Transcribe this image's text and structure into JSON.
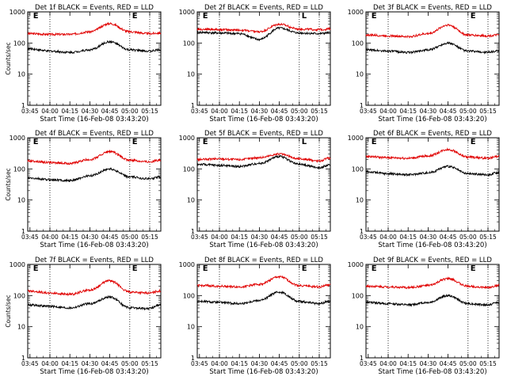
{
  "chart_data": [
    {
      "type": "line",
      "title": "Det 1f BLACK = Events, RED = LLD",
      "xlabel": "Start Time (16-Feb-08 03:43:20)",
      "ylabel": "Counts/sec",
      "yscale": "log",
      "ylim": [
        1,
        1000
      ],
      "yticks": [
        1,
        10,
        100,
        1000
      ],
      "xticks": [
        "03:45",
        "04:00",
        "04:15",
        "04:30",
        "04:45",
        "05:00",
        "05:15"
      ],
      "markers": [
        "E",
        "E"
      ],
      "series": [
        {
          "color": "#e00000",
          "points": [
            [
              "03:45",
              200
            ],
            [
              "04:00",
              190
            ],
            [
              "04:15",
              190
            ],
            [
              "04:30",
              230
            ],
            [
              "04:45",
              420
            ],
            [
              "05:00",
              230
            ],
            [
              "05:15",
              200
            ],
            [
              "05:22",
              210
            ]
          ]
        },
        {
          "color": "#000000",
          "points": [
            [
              "03:45",
              65
            ],
            [
              "04:00",
              55
            ],
            [
              "04:15",
              50
            ],
            [
              "04:30",
              60
            ],
            [
              "04:45",
              110
            ],
            [
              "05:00",
              60
            ],
            [
              "05:15",
              55
            ],
            [
              "05:22",
              60
            ]
          ]
        }
      ]
    },
    {
      "type": "line",
      "title": "Det 2f BLACK = Events, RED = LLD",
      "xlabel": "Start Time (16-Feb-08 03:43:20)",
      "ylabel": "",
      "yscale": "log",
      "ylim": [
        1,
        1000
      ],
      "yticks": [
        1,
        10,
        100,
        1000
      ],
      "xticks": [
        "03:45",
        "04:00",
        "04:15",
        "04:30",
        "04:45",
        "05:00",
        "05:15"
      ],
      "markers": [
        "E",
        "L"
      ],
      "series": [
        {
          "color": "#e00000",
          "points": [
            [
              "03:45",
              280
            ],
            [
              "04:00",
              270
            ],
            [
              "04:15",
              260
            ],
            [
              "04:30",
              230
            ],
            [
              "04:45",
              400
            ],
            [
              "05:00",
              280
            ],
            [
              "05:15",
              270
            ],
            [
              "05:22",
              280
            ]
          ]
        },
        {
          "color": "#000000",
          "points": [
            [
              "03:45",
              220
            ],
            [
              "04:00",
              210
            ],
            [
              "04:15",
              200
            ],
            [
              "04:30",
              130
            ],
            [
              "04:45",
              300
            ],
            [
              "05:00",
              210
            ],
            [
              "05:15",
              200
            ],
            [
              "05:22",
              210
            ]
          ]
        }
      ]
    },
    {
      "type": "line",
      "title": "Det 3f BLACK = Events, RED = LLD",
      "xlabel": "Start Time (16-Feb-08 03:43:20)",
      "ylabel": "",
      "yscale": "log",
      "ylim": [
        1,
        1000
      ],
      "yticks": [
        1,
        10,
        100,
        1000
      ],
      "xticks": [
        "03:45",
        "04:00",
        "04:15",
        "04:30",
        "04:45",
        "05:00",
        "05:15"
      ],
      "markers": [
        "E",
        "E"
      ],
      "series": [
        {
          "color": "#e00000",
          "points": [
            [
              "03:45",
              180
            ],
            [
              "04:00",
              170
            ],
            [
              "04:15",
              160
            ],
            [
              "04:30",
              200
            ],
            [
              "04:45",
              380
            ],
            [
              "05:00",
              180
            ],
            [
              "05:15",
              170
            ],
            [
              "05:22",
              180
            ]
          ]
        },
        {
          "color": "#000000",
          "points": [
            [
              "03:45",
              60
            ],
            [
              "04:00",
              55
            ],
            [
              "04:15",
              50
            ],
            [
              "04:30",
              60
            ],
            [
              "04:45",
              100
            ],
            [
              "05:00",
              55
            ],
            [
              "05:15",
              50
            ],
            [
              "05:22",
              55
            ]
          ]
        }
      ]
    },
    {
      "type": "line",
      "title": "Det 4f BLACK = Events, RED = LLD",
      "xlabel": "Start Time (16-Feb-08 03:43:20)",
      "ylabel": "Counts/sec",
      "yscale": "log",
      "ylim": [
        1,
        1000
      ],
      "yticks": [
        1,
        10,
        100,
        1000
      ],
      "xticks": [
        "03:45",
        "04:00",
        "04:15",
        "04:30",
        "04:45",
        "05:00",
        "05:15"
      ],
      "markers": [
        "E",
        "E"
      ],
      "series": [
        {
          "color": "#e00000",
          "points": [
            [
              "03:45",
              180
            ],
            [
              "04:00",
              160
            ],
            [
              "04:15",
              150
            ],
            [
              "04:30",
              200
            ],
            [
              "04:45",
              360
            ],
            [
              "05:00",
              190
            ],
            [
              "05:15",
              170
            ],
            [
              "05:22",
              190
            ]
          ]
        },
        {
          "color": "#000000",
          "points": [
            [
              "03:45",
              50
            ],
            [
              "04:00",
              45
            ],
            [
              "04:15",
              42
            ],
            [
              "04:30",
              60
            ],
            [
              "04:45",
              100
            ],
            [
              "05:00",
              55
            ],
            [
              "05:15",
              48
            ],
            [
              "05:22",
              55
            ]
          ]
        }
      ]
    },
    {
      "type": "line",
      "title": "Det 5f BLACK = Events, RED = LLD",
      "xlabel": "Start Time (16-Feb-08 03:43:20)",
      "ylabel": "",
      "yscale": "log",
      "ylim": [
        1,
        1000
      ],
      "yticks": [
        1,
        10,
        100,
        1000
      ],
      "xticks": [
        "03:45",
        "04:00",
        "04:15",
        "04:30",
        "04:45",
        "05:00",
        "05:15"
      ],
      "markers": [
        "E",
        "L"
      ],
      "series": [
        {
          "color": "#e00000",
          "points": [
            [
              "03:45",
              200
            ],
            [
              "04:00",
              210
            ],
            [
              "04:15",
              200
            ],
            [
              "04:30",
              230
            ],
            [
              "04:45",
              300
            ],
            [
              "05:00",
              210
            ],
            [
              "05:15",
              180
            ],
            [
              "05:22",
              220
            ]
          ]
        },
        {
          "color": "#000000",
          "points": [
            [
              "03:45",
              140
            ],
            [
              "04:00",
              130
            ],
            [
              "04:15",
              120
            ],
            [
              "04:30",
              150
            ],
            [
              "04:45",
              250
            ],
            [
              "05:00",
              140
            ],
            [
              "05:15",
              110
            ],
            [
              "05:22",
              130
            ]
          ]
        }
      ]
    },
    {
      "type": "line",
      "title": "Det 6f BLACK = Events, RED = LLD",
      "xlabel": "Start Time (16-Feb-08 03:43:20)",
      "ylabel": "",
      "yscale": "log",
      "ylim": [
        1,
        1000
      ],
      "yticks": [
        1,
        10,
        100,
        1000
      ],
      "xticks": [
        "03:45",
        "04:00",
        "04:15",
        "04:30",
        "04:45",
        "05:00",
        "05:15"
      ],
      "markers": [
        "E",
        "E"
      ],
      "series": [
        {
          "color": "#e00000",
          "points": [
            [
              "03:45",
              250
            ],
            [
              "04:00",
              230
            ],
            [
              "04:15",
              220
            ],
            [
              "04:30",
              260
            ],
            [
              "04:45",
              420
            ],
            [
              "05:00",
              240
            ],
            [
              "05:15",
              220
            ],
            [
              "05:22",
              250
            ]
          ]
        },
        {
          "color": "#000000",
          "points": [
            [
              "03:45",
              80
            ],
            [
              "04:00",
              70
            ],
            [
              "04:15",
              65
            ],
            [
              "04:30",
              75
            ],
            [
              "04:45",
              120
            ],
            [
              "05:00",
              70
            ],
            [
              "05:15",
              65
            ],
            [
              "05:22",
              75
            ]
          ]
        }
      ]
    },
    {
      "type": "line",
      "title": "Det 7f BLACK = Events, RED = LLD",
      "xlabel": "Start Time (16-Feb-08 03:43:20)",
      "ylabel": "Counts/sec",
      "yscale": "log",
      "ylim": [
        1,
        1000
      ],
      "yticks": [
        1,
        10,
        100,
        1000
      ],
      "xticks": [
        "03:45",
        "04:00",
        "04:15",
        "04:30",
        "04:45",
        "05:00",
        "05:15"
      ],
      "markers": [
        "E",
        "E"
      ],
      "series": [
        {
          "color": "#e00000",
          "points": [
            [
              "03:45",
              140
            ],
            [
              "04:00",
              120
            ],
            [
              "04:15",
              110
            ],
            [
              "04:30",
              150
            ],
            [
              "04:45",
              300
            ],
            [
              "05:00",
              130
            ],
            [
              "05:15",
              120
            ],
            [
              "05:22",
              140
            ]
          ]
        },
        {
          "color": "#000000",
          "points": [
            [
              "03:45",
              50
            ],
            [
              "04:00",
              45
            ],
            [
              "04:15",
              40
            ],
            [
              "04:30",
              55
            ],
            [
              "04:45",
              90
            ],
            [
              "05:00",
              40
            ],
            [
              "05:15",
              38
            ],
            [
              "05:22",
              50
            ]
          ]
        }
      ]
    },
    {
      "type": "line",
      "title": "Det 8f BLACK = Events, RED = LLD",
      "xlabel": "Start Time (16-Feb-08 03:43:20)",
      "ylabel": "",
      "yscale": "log",
      "ylim": [
        1,
        1000
      ],
      "yticks": [
        1,
        10,
        100,
        1000
      ],
      "xticks": [
        "03:45",
        "04:00",
        "04:15",
        "04:30",
        "04:45",
        "05:00",
        "05:15"
      ],
      "markers": [
        "E",
        "E"
      ],
      "series": [
        {
          "color": "#e00000",
          "points": [
            [
              "03:45",
              210
            ],
            [
              "04:00",
              200
            ],
            [
              "04:15",
              190
            ],
            [
              "04:30",
              230
            ],
            [
              "04:45",
              400
            ],
            [
              "05:00",
              210
            ],
            [
              "05:15",
              190
            ],
            [
              "05:22",
              220
            ]
          ]
        },
        {
          "color": "#000000",
          "points": [
            [
              "03:45",
              65
            ],
            [
              "04:00",
              60
            ],
            [
              "04:15",
              55
            ],
            [
              "04:30",
              70
            ],
            [
              "04:45",
              130
            ],
            [
              "05:00",
              65
            ],
            [
              "05:15",
              55
            ],
            [
              "05:22",
              65
            ]
          ]
        }
      ]
    },
    {
      "type": "line",
      "title": "Det 9f BLACK = Events, RED = LLD",
      "xlabel": "Start Time (16-Feb-08 03:43:20)",
      "ylabel": "",
      "yscale": "log",
      "ylim": [
        1,
        1000
      ],
      "yticks": [
        1,
        10,
        100,
        1000
      ],
      "xticks": [
        "03:45",
        "04:00",
        "04:15",
        "04:30",
        "04:45",
        "05:00",
        "05:15"
      ],
      "markers": [
        "E",
        "E"
      ],
      "series": [
        {
          "color": "#e00000",
          "points": [
            [
              "03:45",
              200
            ],
            [
              "04:00",
              190
            ],
            [
              "04:15",
              180
            ],
            [
              "04:30",
              210
            ],
            [
              "04:45",
              350
            ],
            [
              "05:00",
              200
            ],
            [
              "05:15",
              180
            ],
            [
              "05:22",
              210
            ]
          ]
        },
        {
          "color": "#000000",
          "points": [
            [
              "03:45",
              60
            ],
            [
              "04:00",
              55
            ],
            [
              "04:15",
              50
            ],
            [
              "04:30",
              60
            ],
            [
              "04:45",
              100
            ],
            [
              "05:00",
              55
            ],
            [
              "05:15",
              50
            ],
            [
              "05:22",
              60
            ]
          ]
        }
      ]
    }
  ]
}
